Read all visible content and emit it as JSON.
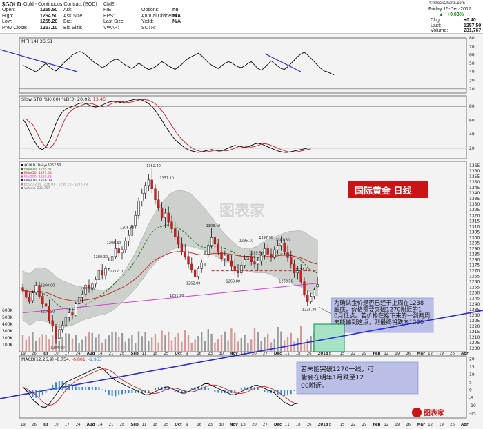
{
  "header": {
    "symbol": "$GOLD",
    "name": "Gold - Continuous Contract (EOD)",
    "exchange": "CME",
    "credit": "© StockCharts.com",
    "date": "Friday 15-Dec-2017",
    "fields": [
      {
        "label": "Open:",
        "value": "1255.50"
      },
      {
        "label": "High:",
        "value": "1264.50"
      },
      {
        "label": "Low:",
        "value": "1255.20"
      },
      {
        "label": "Prev Close:",
        "value": "1257.10"
      },
      {
        "label": "Ask:",
        "value": ""
      },
      {
        "label": "Ask Size:",
        "value": ""
      },
      {
        "label": "Bid:",
        "value": ""
      },
      {
        "label": "Bid Size:",
        "value": ""
      },
      {
        "label": "P/E:",
        "value": ""
      },
      {
        "label": "EPS:",
        "value": ""
      },
      {
        "label": "Last Size:",
        "value": ""
      },
      {
        "label": "VWAP:",
        "value": ""
      },
      {
        "label": "Options:",
        "value": "no"
      },
      {
        "label": "Annual Dividend:",
        "value": "N/A"
      },
      {
        "label": "Yield:",
        "value": "N/A"
      },
      {
        "label": "SCTR:",
        "value": ""
      }
    ],
    "change_pct": "+0.03%",
    "right_fields": [
      {
        "label": "Chg:",
        "value": "+0.40"
      },
      {
        "label": "Last:",
        "value": "1257.50"
      },
      {
        "label": "Volume:",
        "value": "231,767"
      }
    ]
  },
  "mfi": {
    "label": "MFI(14) 36.51",
    "ticks": [
      "80",
      "70",
      "60",
      "50",
      "40",
      "30",
      "20"
    ]
  },
  "sto": {
    "label_a": "Slow STO %K(60) %D(3) 20.02,",
    "label_b": "13.45",
    "ticks": [
      "80",
      "60",
      "40",
      "20"
    ]
  },
  "price": {
    "legend": [
      {
        "text": "$GOLD (Daily) 1257.50",
        "color": "#000000"
      },
      {
        "text": "EMA(20) 1265.61",
        "color": "#1a6b1a"
      },
      {
        "text": "EMA(50) 1275.54",
        "color": "#c81e1e"
      },
      {
        "text": "MA(200) 1260.35",
        "color": "#d43cd4"
      },
      {
        "text": "EMA(10) 1259.09",
        "color": "#1a1a1a"
      },
      {
        "text": "BB(20,2.0) 1236.61 - 1256.20 - 1275.79",
        "color": "#8a8a8a"
      },
      {
        "text": "Volume 231,767",
        "color": "#777777"
      }
    ],
    "title": "国际黄金  日线",
    "watermark": "图表家",
    "ticks": [
      "1365",
      "1360",
      "1355",
      "1350",
      "1345",
      "1340",
      "1335",
      "1330",
      "1325",
      "1320",
      "1315",
      "1310",
      "1305",
      "1300",
      "1295",
      "1290",
      "1285",
      "1280",
      "1275",
      "1270",
      "1265",
      "1260",
      "1255",
      "1250",
      "1245",
      "1240",
      "1235",
      "1230",
      "1225",
      "1220",
      "1215",
      "1210",
      "1205",
      "1200"
    ],
    "vol_ticks": [
      "600K",
      "500K",
      "400K",
      "300K",
      "200K",
      "100K"
    ],
    "annotations": [
      {
        "text": "1362.40"
      },
      {
        "text": "1357.10"
      },
      {
        "text": "1306.90"
      },
      {
        "text": "1298.30"
      },
      {
        "text": "1280.30"
      },
      {
        "text": "1272.70"
      },
      {
        "text": "1257.10"
      },
      {
        "text": "1260.00"
      },
      {
        "text": "1236.50"
      },
      {
        "text": "1204.00"
      },
      {
        "text": "1308.40"
      },
      {
        "text": "1251.20"
      },
      {
        "text": "1295.10"
      },
      {
        "text": "1289.50"
      },
      {
        "text": "1297.90"
      },
      {
        "text": "1301.30"
      },
      {
        "text": "1262.00"
      },
      {
        "text": "1263.80"
      },
      {
        "text": "1263.70"
      },
      {
        "text": "1274.10"
      },
      {
        "text": "1238.30"
      }
    ],
    "note1": "为确认金价是否已经于上周在1238触底，价格需要突破1270附近的10月低点。若价格在接下来的一到两周未能做到这点，则最终将跌向1200。",
    "note2": "若未能突破1270一线，可能会在明年1月跌至1200附近。"
  },
  "macd": {
    "label_a": "MACD(12,26,9) -8.754,",
    "label_b": "-6.801,",
    "label_c": "-1.953",
    "ticks": [
      "20",
      "15",
      "10",
      "5",
      "0",
      "-5",
      "-10",
      "-15"
    ]
  },
  "xaxis": {
    "labels": [
      "19",
      "26",
      "Jul",
      "10",
      "17",
      "24",
      "Aug",
      "14",
      "21",
      "28",
      "Sep",
      "11",
      "18",
      "25",
      "Oct",
      "9",
      "16",
      "23",
      "30",
      "Nov",
      "13",
      "20",
      "27",
      "Dec",
      "11",
      "18",
      "26",
      "2018",
      "8",
      "15",
      "22",
      "29",
      "Feb",
      "12",
      "19",
      "26",
      "Mar",
      "12",
      "19",
      "26",
      "Apr"
    ]
  },
  "logo": "图表家",
  "chart_data": {
    "type": "candlestick",
    "title": "$GOLD (Daily)",
    "ylim": [
      1200,
      1365
    ],
    "ohlc": [
      [
        1255,
        1258,
        1250,
        1252
      ],
      [
        1252,
        1254,
        1244,
        1246
      ],
      [
        1246,
        1250,
        1240,
        1242
      ],
      [
        1243,
        1252,
        1241,
        1250
      ],
      [
        1250,
        1260,
        1248,
        1257
      ],
      [
        1257,
        1260,
        1245,
        1247
      ],
      [
        1247,
        1250,
        1236.5,
        1240
      ],
      [
        1240,
        1245,
        1232,
        1238
      ],
      [
        1238,
        1244,
        1222,
        1225
      ],
      [
        1225,
        1230,
        1215,
        1220
      ],
      [
        1220,
        1222,
        1204,
        1209
      ],
      [
        1209,
        1222,
        1208,
        1217
      ],
      [
        1217,
        1225,
        1214,
        1221
      ],
      [
        1221,
        1231,
        1219,
        1228
      ],
      [
        1228,
        1236,
        1224,
        1232
      ],
      [
        1232,
        1236,
        1226,
        1230
      ],
      [
        1230,
        1242,
        1229,
        1240
      ],
      [
        1240,
        1248,
        1236,
        1246
      ],
      [
        1246,
        1252,
        1241,
        1249
      ],
      [
        1249,
        1258,
        1246,
        1257.1
      ],
      [
        1257,
        1262,
        1250,
        1254
      ],
      [
        1254,
        1260,
        1250,
        1258
      ],
      [
        1258,
        1265,
        1255,
        1262
      ],
      [
        1262,
        1272.7,
        1260,
        1270
      ],
      [
        1270,
        1276,
        1262,
        1266
      ],
      [
        1266,
        1274,
        1262,
        1272
      ],
      [
        1272,
        1282,
        1270,
        1279
      ],
      [
        1279,
        1286,
        1274,
        1283
      ],
      [
        1283,
        1298.3,
        1281,
        1290
      ],
      [
        1290,
        1295,
        1282,
        1286
      ],
      [
        1286,
        1292,
        1280,
        1289
      ],
      [
        1289,
        1300,
        1286,
        1297
      ],
      [
        1297,
        1307,
        1292,
        1302
      ],
      [
        1302,
        1314,
        1298,
        1311
      ],
      [
        1311,
        1324,
        1308,
        1320
      ],
      [
        1320,
        1336,
        1317,
        1333
      ],
      [
        1333,
        1344,
        1328,
        1340
      ],
      [
        1340,
        1350,
        1335,
        1347
      ],
      [
        1347,
        1357,
        1342,
        1352
      ],
      [
        1352,
        1362.4,
        1340,
        1344
      ],
      [
        1344,
        1348,
        1330,
        1334
      ],
      [
        1334,
        1342,
        1324,
        1327
      ],
      [
        1327,
        1332,
        1315,
        1318
      ],
      [
        1318,
        1326,
        1309,
        1322
      ],
      [
        1322,
        1328,
        1310,
        1314
      ],
      [
        1314,
        1320,
        1304,
        1308
      ],
      [
        1308,
        1314,
        1298,
        1301
      ],
      [
        1301,
        1306,
        1290,
        1294
      ],
      [
        1294,
        1300,
        1284,
        1287
      ],
      [
        1287,
        1294,
        1280,
        1283
      ],
      [
        1283,
        1288,
        1272,
        1276
      ],
      [
        1276,
        1282,
        1268,
        1271
      ],
      [
        1271,
        1276,
        1262,
        1265
      ],
      [
        1265,
        1274,
        1262,
        1272
      ],
      [
        1272,
        1280,
        1268,
        1277
      ],
      [
        1277,
        1288,
        1274,
        1285
      ],
      [
        1285,
        1297,
        1282,
        1293
      ],
      [
        1293,
        1308.4,
        1290,
        1300
      ],
      [
        1300,
        1306,
        1290,
        1294
      ],
      [
        1294,
        1299,
        1284,
        1287
      ],
      [
        1287,
        1292,
        1278,
        1281
      ],
      [
        1281,
        1288,
        1274,
        1284
      ],
      [
        1284,
        1290,
        1276,
        1279
      ],
      [
        1279,
        1284,
        1270,
        1274
      ],
      [
        1274,
        1280,
        1266,
        1270
      ],
      [
        1270,
        1276,
        1263.8,
        1268
      ],
      [
        1268,
        1278,
        1266,
        1275
      ],
      [
        1275,
        1284,
        1272,
        1280
      ],
      [
        1280,
        1289.5,
        1276,
        1283
      ],
      [
        1283,
        1288,
        1275,
        1278
      ],
      [
        1278,
        1284,
        1272,
        1276
      ],
      [
        1276,
        1282,
        1270,
        1279
      ],
      [
        1279,
        1287,
        1275,
        1284
      ],
      [
        1284,
        1295.1,
        1280,
        1290
      ],
      [
        1290,
        1294,
        1281,
        1285
      ],
      [
        1285,
        1290,
        1278,
        1282
      ],
      [
        1282,
        1292,
        1280,
        1289
      ],
      [
        1289,
        1297.9,
        1285,
        1293
      ],
      [
        1293,
        1301.3,
        1288,
        1295
      ],
      [
        1295,
        1299,
        1284,
        1287
      ],
      [
        1287,
        1293,
        1278,
        1282
      ],
      [
        1282,
        1288,
        1272,
        1276
      ],
      [
        1276,
        1280,
        1263.7,
        1268
      ],
      [
        1268,
        1274.1,
        1262,
        1270
      ],
      [
        1270,
        1276,
        1258,
        1260
      ],
      [
        1260,
        1264,
        1246,
        1248
      ],
      [
        1248,
        1252,
        1238.3,
        1242
      ],
      [
        1242,
        1250,
        1240,
        1247
      ],
      [
        1247,
        1255,
        1244,
        1253
      ],
      [
        1255.5,
        1264.5,
        1255.2,
        1257.5
      ]
    ]
  }
}
